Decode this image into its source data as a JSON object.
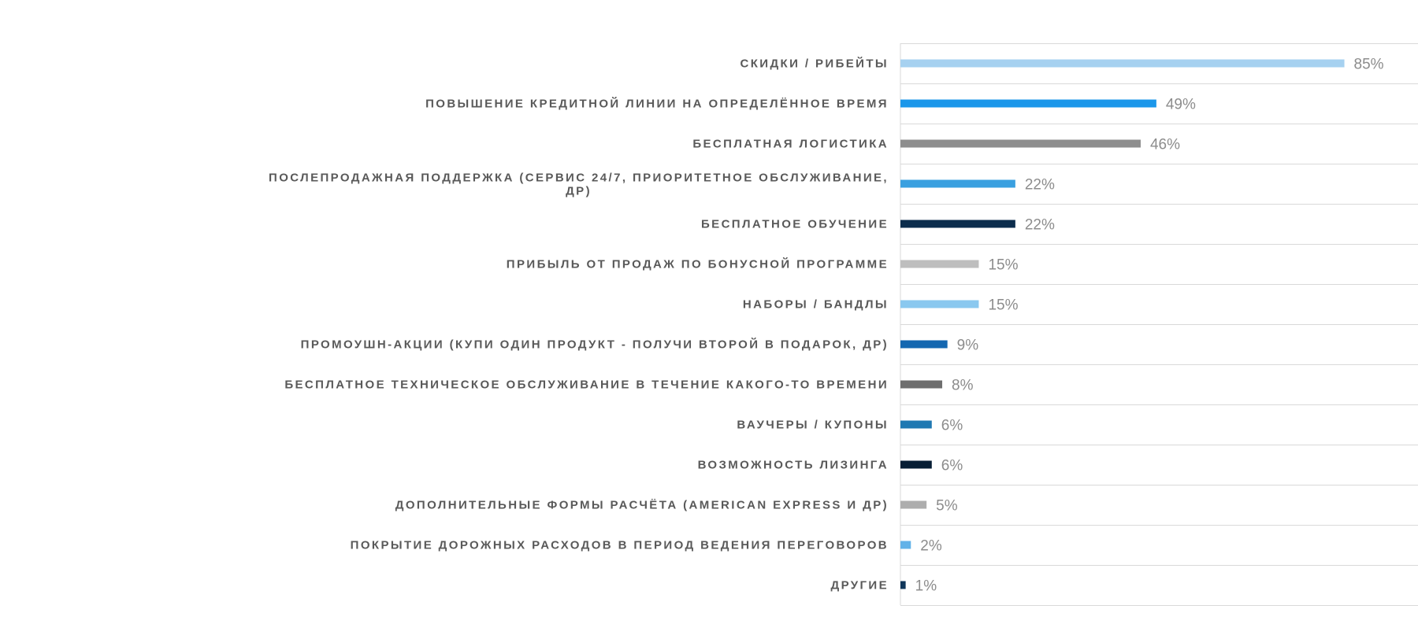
{
  "chart_data": {
    "type": "bar",
    "orientation": "horizontal",
    "title": "",
    "xlabel": "",
    "ylabel": "",
    "value_suffix": "%",
    "xlim": [
      0,
      100
    ],
    "grid": "horizontal separators between categories",
    "legend": "none",
    "categories": [
      [
        "СКИДКИ / РИБЕЙТЫ"
      ],
      [
        "ПОВЫШЕНИЕ КРЕДИТНОЙ ЛИНИИ НА ОПРЕДЕЛЁННОЕ ВРЕМЯ"
      ],
      [
        "БЕСПЛАТНАЯ ЛОГИСТИКА"
      ],
      [
        "ПОСЛЕПРОДАЖНАЯ ПОДДЕРЖКА (СЕРВИС 24/7, ПРИОРИТЕТНОЕ ОБСЛУЖИВАНИЕ,",
        "ДР)"
      ],
      [
        "БЕСПЛАТНОЕ ОБУЧЕНИЕ"
      ],
      [
        "ПРИБЫЛЬ ОТ ПРОДАЖ ПО БОНУСНОЙ ПРОГРАММЕ"
      ],
      [
        "НАБОРЫ / БАНДЛЫ"
      ],
      [
        "ПРОМОУШН-АКЦИИ (КУПИ ОДИН ПРОДУКТ - ПОЛУЧИ ВТОРОЙ В ПОДАРОК, ДР)"
      ],
      [
        "БЕСПЛАТНОЕ ТЕХНИЧЕСКОЕ ОБСЛУЖИВАНИЕ В ТЕЧЕНИЕ КАКОГО-ТО ВРЕМЕНИ"
      ],
      [
        "ВАУЧЕРЫ / КУПОНЫ"
      ],
      [
        "ВОЗМОЖНОСТЬ ЛИЗИНГА"
      ],
      [
        "ДОПОЛНИТЕЛЬНЫЕ ФОРМЫ РАСЧЁТА (AMERICAN EXPRESS И ДР)"
      ],
      [
        "ПОКРЫТИЕ ДОРОЖНЫХ РАСХОДОВ В ПЕРИОД ВЕДЕНИЯ ПЕРЕГОВОРОВ"
      ],
      [
        "ДРУГИЕ"
      ]
    ],
    "values": [
      85,
      49,
      46,
      22,
      22,
      15,
      15,
      9,
      8,
      6,
      6,
      5,
      2,
      1
    ],
    "value_labels": [
      "85%",
      "49%",
      "46%",
      "22%",
      "22%",
      "15%",
      "15%",
      "9%",
      "8%",
      "6%",
      "6%",
      "5%",
      "2%",
      "1%"
    ],
    "bar_colors": [
      "#a6d1f0",
      "#1b97ea",
      "#8e8e8e",
      "#3aa0e0",
      "#0c2d4d",
      "#bebebe",
      "#8ac8ef",
      "#1467b0",
      "#6e6e6e",
      "#2079b2",
      "#071e35",
      "#adadad",
      "#62b2e8",
      "#10365a"
    ],
    "colors": {
      "label_text": "#595959",
      "value_text": "#8c8c8c",
      "gridline": "#d9d9d9"
    }
  }
}
